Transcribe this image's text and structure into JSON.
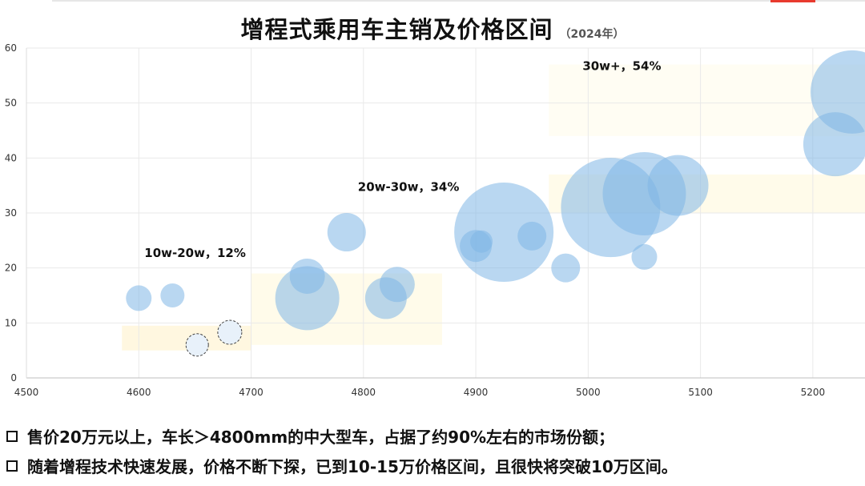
{
  "title": "增程式乘用车主销及价格区间",
  "title_year": "（2024年）",
  "chart_data": {
    "type": "scatter",
    "subtype": "bubble",
    "xlim": [
      4500,
      5250
    ],
    "ylim": [
      0,
      60
    ],
    "x_ticks": [
      "4500",
      "4600",
      "4700",
      "4800",
      "4900",
      "5000",
      "5100",
      "5200"
    ],
    "y_ticks": [
      "0",
      "10",
      "20",
      "30",
      "40",
      "50",
      "60"
    ],
    "grid": true,
    "bubble_color": "#7fb7e6",
    "highlight_colors": [
      "#fff7e0",
      "#fffbea"
    ],
    "annotations": [
      {
        "text": "10w-20w，12%",
        "x": 4605,
        "y": 22
      },
      {
        "text": "20w-30w，34%",
        "x": 4795,
        "y": 34
      },
      {
        "text": "30w+，54%",
        "x": 4995,
        "y": 56
      }
    ],
    "points": [
      {
        "x": 4600,
        "y": 14.5,
        "size": 16
      },
      {
        "x": 4630,
        "y": 15,
        "size": 15
      },
      {
        "x": 4652,
        "y": 6,
        "size": 14,
        "dashed": true
      },
      {
        "x": 4681,
        "y": 8.3,
        "size": 15,
        "dashed": true
      },
      {
        "x": 4750,
        "y": 14.5,
        "size": 40
      },
      {
        "x": 4750,
        "y": 18.5,
        "size": 22
      },
      {
        "x": 4785,
        "y": 26.5,
        "size": 24
      },
      {
        "x": 4820,
        "y": 14.5,
        "size": 26
      },
      {
        "x": 4830,
        "y": 17,
        "size": 22
      },
      {
        "x": 4900,
        "y": 24,
        "size": 20
      },
      {
        "x": 4905,
        "y": 24.8,
        "size": 14
      },
      {
        "x": 4925,
        "y": 26.5,
        "size": 62
      },
      {
        "x": 4950,
        "y": 25.8,
        "size": 18
      },
      {
        "x": 4980,
        "y": 20,
        "size": 18
      },
      {
        "x": 5020,
        "y": 31,
        "size": 62
      },
      {
        "x": 5050,
        "y": 33.5,
        "size": 52
      },
      {
        "x": 5050,
        "y": 22,
        "size": 16
      },
      {
        "x": 5080,
        "y": 35,
        "size": 38
      },
      {
        "x": 5220,
        "y": 42.5,
        "size": 40
      },
      {
        "x": 5235,
        "y": 52,
        "size": 52
      }
    ]
  },
  "notes": [
    "售价20万元以上，车长＞4800mm的中大型车，占据了约90%左右的市场份额；",
    "随着增程技术快速发展，价格不断下探，已到10-15万价格区间，且很快将突破10万区间。"
  ]
}
